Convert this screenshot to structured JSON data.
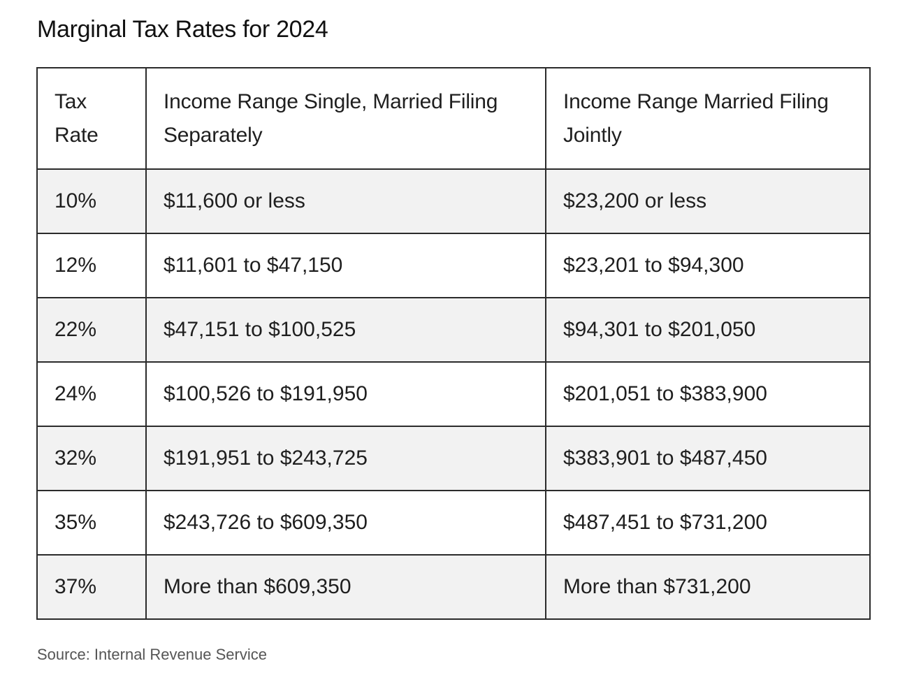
{
  "title": "Marginal Tax Rates for 2024",
  "table": {
    "headers": [
      "Tax Rate",
      "Income Range Single, Married Filing Separately",
      "Income Range Married Filing Jointly"
    ],
    "rows": [
      [
        "10%",
        "$11,600 or less",
        "$23,200 or less"
      ],
      [
        "12%",
        "$11,601 to $47,150",
        "$23,201 to $94,300"
      ],
      [
        "22%",
        "$47,151 to $100,525",
        "$94,301 to $201,050"
      ],
      [
        "24%",
        "$100,526 to $191,950",
        "$201,051 to $383,900"
      ],
      [
        "32%",
        "$191,951 to $243,725",
        "$383,901 to $487,450"
      ],
      [
        "35%",
        "$243,726 to $609,350",
        "$487,451 to $731,200"
      ],
      [
        "37%",
        "More than $609,350",
        "More than $731,200"
      ]
    ]
  },
  "source": "Source: Internal Revenue Service",
  "colors": {
    "border": "#2b2b2b",
    "stripe": "#f2f2f2",
    "source_text": "#555555"
  }
}
